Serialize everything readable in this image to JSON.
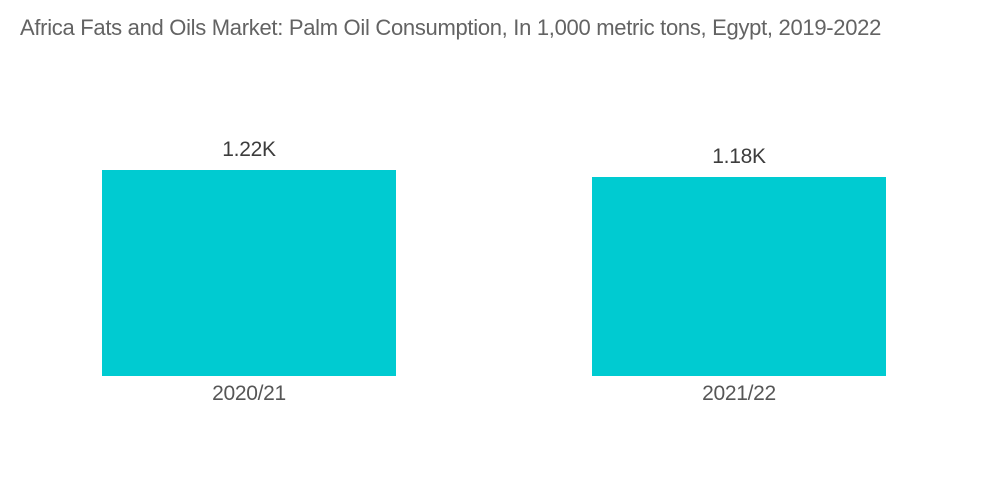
{
  "chart_data": {
    "type": "bar",
    "title": "Africa Fats and Oils Market: Palm Oil Consumption, In 1,000 metric tons, Egypt, 2019-2022",
    "categories": [
      "2020/21",
      "2021/22"
    ],
    "values": [
      1220,
      1180
    ],
    "value_labels": [
      "1.22K",
      "1.18K"
    ],
    "ylabel": "",
    "xlabel": "",
    "ylim": [
      0,
      1250
    ],
    "grid": false,
    "legend": false,
    "bar_color": "#00CBD1",
    "background_color": "#FFFFFF",
    "title_color": "#636363",
    "value_label_color": "#3d3d3d",
    "category_label_color": "#565656"
  }
}
